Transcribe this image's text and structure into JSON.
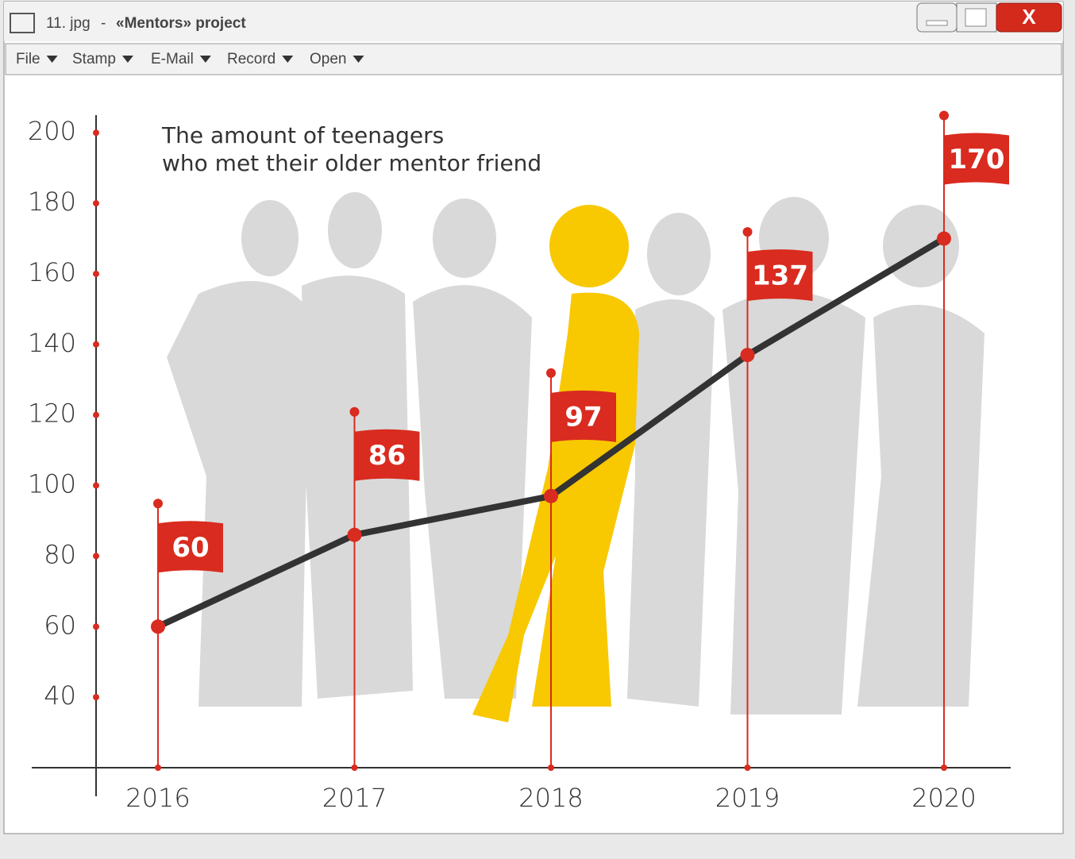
{
  "window": {
    "file": "11. jpg",
    "separator": "-",
    "project": "«Mentors» project",
    "close": "X",
    "menu": [
      "File",
      "Stamp",
      "E-Mail",
      "Record",
      "Open"
    ]
  },
  "chart_data": {
    "type": "line",
    "title": [
      "The amount of teenagers",
      "who met their older mentor friend"
    ],
    "categories": [
      "2016",
      "2017",
      "2018",
      "2019",
      "2020"
    ],
    "values": [
      60,
      86,
      97,
      137,
      170
    ],
    "value_labels": [
      "60",
      "86",
      "97",
      "137",
      "170"
    ],
    "color": "#333333",
    "marker_color": "#d92b1f",
    "ylim": [
      20,
      205
    ],
    "yticks": [
      40,
      60,
      80,
      100,
      120,
      140,
      160,
      180,
      200
    ]
  }
}
